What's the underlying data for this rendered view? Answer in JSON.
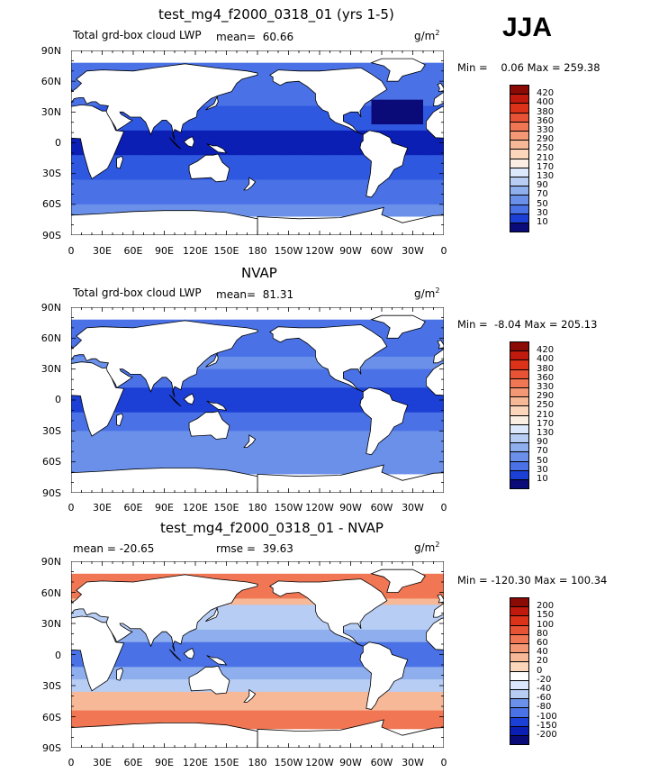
{
  "season": "JJA",
  "lat_labels": [
    "90N",
    "60N",
    "30N",
    "0",
    "30S",
    "60S",
    "90S"
  ],
  "lon_labels": [
    "0",
    "30E",
    "60E",
    "90E",
    "120E",
    "150E",
    "180",
    "150W",
    "120W",
    "90W",
    "60W",
    "30W",
    "0"
  ],
  "colors": {
    "blue": [
      "#0a0a78",
      "#0b1fb4",
      "#1c3fd6",
      "#2f58e0",
      "#4a72e6",
      "#6a90ea",
      "#8eaeee",
      "#b7cdf4",
      "#dce8fb"
    ],
    "warm": [
      "#fbefe3",
      "#fbd6bb",
      "#f7b898",
      "#f49775",
      "#f07654",
      "#e95335",
      "#db3219",
      "#c01a0e",
      "#8a0a05"
    ],
    "land": "#ffffff",
    "coast": "#000000"
  },
  "panels": [
    {
      "title": "test_mg4_f2000_0318_01 (yrs 1-5)",
      "left_label": "Total grd-box cloud LWP",
      "stat_label": "mean=",
      "stat_value": "60.66",
      "units": "g/m",
      "units_sup": "2",
      "minmax": "Min =    0.06 Max = 259.38",
      "palette": "sequential",
      "levels": [
        "420",
        "400",
        "380",
        "360",
        "330",
        "290",
        "250",
        "210",
        "170",
        "130",
        "90",
        "70",
        "50",
        "30",
        "10"
      ]
    },
    {
      "title": "NVAP",
      "left_label": "Total grd-box cloud LWP",
      "stat_label": "mean=",
      "stat_value": "81.31",
      "units": "g/m",
      "units_sup": "2",
      "minmax": "Min =  -8.04 Max = 205.13",
      "palette": "sequential",
      "levels": [
        "420",
        "400",
        "380",
        "360",
        "330",
        "290",
        "250",
        "210",
        "170",
        "130",
        "90",
        "70",
        "50",
        "30",
        "10"
      ]
    },
    {
      "title": "test_mg4_f2000_0318_01 - NVAP",
      "left_label": "mean = -20.65",
      "stat_label": "rmse =",
      "stat_value": "39.63",
      "units": "g/m",
      "units_sup": "2",
      "minmax": "Min = -120.30 Max = 100.34",
      "palette": "diverging",
      "levels": [
        "200",
        "150",
        "100",
        "80",
        "60",
        "40",
        "20",
        "0",
        "-20",
        "-40",
        "-60",
        "-80",
        "-100",
        "-150",
        "-200"
      ]
    }
  ],
  "chart_data": [
    {
      "type": "heatmap",
      "title": "test_mg4_f2000_0318_01 (yrs 1-5)",
      "variable": "Total grd-box cloud LWP",
      "units": "g/m^2",
      "season": "JJA",
      "mean": 60.66,
      "min": 0.06,
      "max": 259.38,
      "contour_levels": [
        10,
        30,
        50,
        70,
        90,
        130,
        170,
        210,
        250,
        290,
        330,
        360,
        380,
        400,
        420
      ],
      "xlim": [
        0,
        360
      ],
      "ylim": [
        -90,
        90
      ]
    },
    {
      "type": "heatmap",
      "title": "NVAP",
      "variable": "Total grd-box cloud LWP",
      "units": "g/m^2",
      "mean": 81.31,
      "min": -8.04,
      "max": 205.13,
      "contour_levels": [
        10,
        30,
        50,
        70,
        90,
        130,
        170,
        210,
        250,
        290,
        330,
        360,
        380,
        400,
        420
      ],
      "xlim": [
        0,
        360
      ],
      "ylim": [
        -90,
        90
      ]
    },
    {
      "type": "heatmap",
      "title": "test_mg4_f2000_0318_01 - NVAP",
      "units": "g/m^2",
      "mean": -20.65,
      "rmse": 39.63,
      "min": -120.3,
      "max": 100.34,
      "contour_levels": [
        -200,
        -150,
        -100,
        -80,
        -60,
        -40,
        -20,
        0,
        20,
        40,
        60,
        80,
        100,
        150,
        200
      ],
      "xlim": [
        0,
        360
      ],
      "ylim": [
        -90,
        90
      ]
    }
  ]
}
